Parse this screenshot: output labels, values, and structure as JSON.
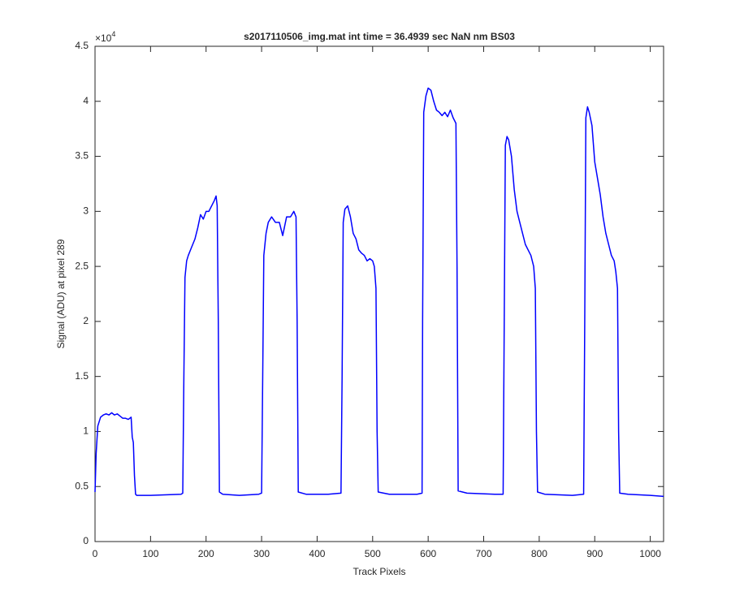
{
  "chart_data": {
    "type": "line",
    "title": "s2017110506_img.mat int time = 36.4939 sec  NaN nm BS03",
    "x_label": "Track Pixels",
    "y_label": "Signal (ADU) at pixel 289",
    "y_multiplier": {
      "base": "×10",
      "exponent": "4"
    },
    "color": "#0000ff",
    "x": [
      0,
      2,
      5,
      10,
      15,
      20,
      25,
      30,
      35,
      40,
      45,
      50,
      55,
      60,
      65,
      67,
      69,
      71,
      73,
      75,
      100,
      130,
      155,
      158,
      160,
      162,
      165,
      168,
      172,
      176,
      180,
      185,
      190,
      195,
      200,
      205,
      210,
      215,
      218,
      220,
      222,
      224,
      230,
      260,
      295,
      300,
      302,
      304,
      308,
      312,
      318,
      325,
      332,
      338,
      345,
      352,
      358,
      362,
      364,
      366,
      380,
      420,
      443,
      445,
      447,
      450,
      455,
      460,
      465,
      470,
      475,
      480,
      485,
      490,
      495,
      500,
      503,
      506,
      508,
      510,
      530,
      580,
      589,
      590,
      592,
      596,
      600,
      605,
      610,
      615,
      620,
      625,
      630,
      635,
      640,
      645,
      650,
      652,
      654,
      670,
      720,
      735,
      737,
      739,
      742,
      745,
      750,
      755,
      760,
      765,
      770,
      775,
      780,
      785,
      790,
      793,
      795,
      797,
      810,
      860,
      880,
      882,
      884,
      887,
      890,
      895,
      900,
      905,
      910,
      915,
      920,
      925,
      930,
      935,
      938,
      941,
      943,
      945,
      960,
      1000,
      1024
    ],
    "values": [
      0.45,
      0.8,
      1.05,
      1.13,
      1.15,
      1.16,
      1.15,
      1.17,
      1.15,
      1.16,
      1.14,
      1.12,
      1.12,
      1.11,
      1.13,
      0.95,
      0.9,
      0.6,
      0.43,
      0.42,
      0.42,
      0.425,
      0.43,
      0.44,
      1.5,
      2.4,
      2.55,
      2.6,
      2.65,
      2.7,
      2.75,
      2.85,
      2.97,
      2.93,
      3.0,
      3.0,
      3.05,
      3.1,
      3.14,
      3.05,
      2.0,
      0.45,
      0.43,
      0.42,
      0.43,
      0.44,
      1.5,
      2.6,
      2.8,
      2.9,
      2.95,
      2.9,
      2.9,
      2.78,
      2.95,
      2.95,
      3.0,
      2.95,
      2.0,
      0.45,
      0.43,
      0.43,
      0.44,
      1.5,
      2.9,
      3.02,
      3.05,
      2.95,
      2.8,
      2.75,
      2.65,
      2.62,
      2.6,
      2.55,
      2.57,
      2.55,
      2.5,
      2.3,
      1.0,
      0.45,
      0.43,
      0.43,
      0.44,
      2.0,
      3.9,
      4.05,
      4.12,
      4.1,
      4.0,
      3.92,
      3.9,
      3.87,
      3.9,
      3.86,
      3.92,
      3.85,
      3.8,
      2.5,
      0.46,
      0.44,
      0.43,
      0.43,
      2.0,
      3.6,
      3.68,
      3.65,
      3.5,
      3.2,
      3.0,
      2.9,
      2.8,
      2.7,
      2.65,
      2.6,
      2.5,
      2.3,
      1.0,
      0.45,
      0.43,
      0.42,
      0.43,
      2.0,
      3.85,
      3.95,
      3.9,
      3.78,
      3.45,
      3.3,
      3.15,
      2.95,
      2.8,
      2.7,
      2.6,
      2.55,
      2.45,
      2.3,
      1.0,
      0.44,
      0.43,
      0.42,
      0.41
    ],
    "xlim": [
      0,
      1024
    ],
    "ylim": [
      0,
      4.5
    ],
    "xticks": [
      0,
      100,
      200,
      300,
      400,
      500,
      600,
      700,
      800,
      900,
      1000
    ],
    "yticks": [
      0,
      0.5,
      1,
      1.5,
      2,
      2.5,
      3,
      3.5,
      4,
      4.5
    ],
    "grid": false
  }
}
